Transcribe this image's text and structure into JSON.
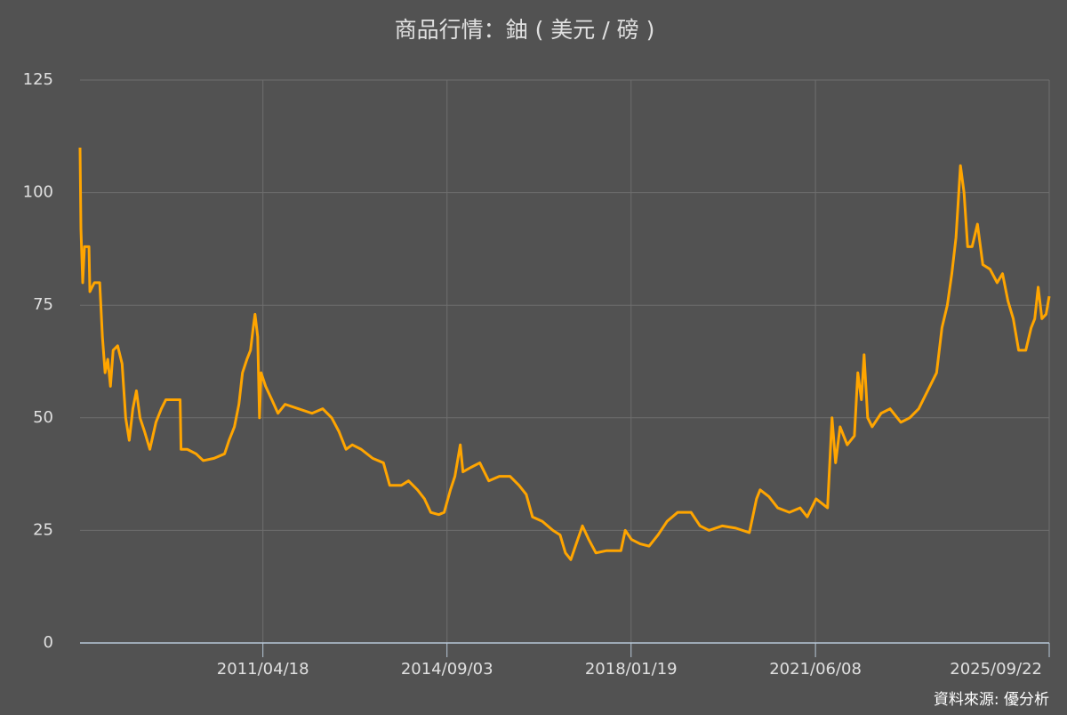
{
  "chart_data": {
    "type": "line",
    "title": "商品行情：鈾 ( 美元 / 磅 )",
    "source": "資料來源: 優分析",
    "x": [
      "2007/12/09",
      "2007/12/15",
      "2007/12/27",
      "2008/01/08",
      "2008/02/07",
      "2008/02/13",
      "2008/03/14",
      "2008/04/19",
      "2008/05/07",
      "2008/05/25",
      "2008/06/12",
      "2008/06/30",
      "2008/07/18",
      "2008/08/17",
      "2008/09/16",
      "2008/10/10",
      "2008/11/03",
      "2008/11/27",
      "2008/12/21",
      "2009/01/14",
      "2009/02/13",
      "2009/03/21",
      "2009/05/01",
      "2009/06/06",
      "2009/07/06",
      "2009/10/10",
      "2009/10/16",
      "2009/11/27",
      "2010/01/25",
      "2010/03/14",
      "2010/05/25",
      "2010/08/04",
      "2010/09/03",
      "2010/10/09",
      "2010/11/08",
      "2010/12/02",
      "2011/01/01",
      "2011/01/25",
      "2011/02/12",
      "2011/02/24",
      "2011/03/14",
      "2011/03/26",
      "2011/04/06",
      "2011/05/06",
      "2011/06/17",
      "2011/07/28",
      "2011/09/14",
      "2011/12/13",
      "2012/03/12",
      "2012/05/23",
      "2012/07/22",
      "2012/09/08",
      "2012/10/26",
      "2012/12/07",
      "2013/02/05",
      "2013/04/23",
      "2013/07/04",
      "2013/08/15",
      "2013/11/01",
      "2013/12/19",
      "2014/02/17",
      "2014/04/05",
      "2014/05/17",
      "2014/07/10",
      "2014/08/15",
      "2014/09/26",
      "2014/10/26",
      "2014/12/01",
      "2014/12/19",
      "2015/02/11",
      "2015/04/11",
      "2015/06/10",
      "2015/08/20",
      "2015/10/31",
      "2015/12/30",
      "2016/02/16",
      "2016/03/29",
      "2016/06/03",
      "2016/08/13",
      "2016/09/30",
      "2016/11/05",
      "2016/12/11",
      "2017/01/16",
      "2017/02/27",
      "2017/04/10",
      "2017/05/28",
      "2017/08/08",
      "2017/11/12",
      "2017/12/11",
      "2018/01/21",
      "2018/03/21",
      "2018/05/20",
      "2018/07/19",
      "2018/09/17",
      "2018/11/27",
      "2019/02/25",
      "2019/04/26",
      "2019/06/25",
      "2019/09/23",
      "2019/12/22",
      "2020/03/22",
      "2020/05/09",
      "2020/06/02",
      "2020/07/31",
      "2020/09/28",
      "2020/12/15",
      "2021/02/25",
      "2021/04/14",
      "2021/06/12",
      "2021/08/28",
      "2021/09/27",
      "2021/10/21",
      "2021/11/20",
      "2022/01/07",
      "2022/02/24",
      "2022/03/19",
      "2022/04/12",
      "2022/04/30",
      "2022/05/24",
      "2022/06/23",
      "2022/08/22",
      "2022/10/21",
      "2023/01/01",
      "2023/03/02",
      "2023/05/01",
      "2023/06/30",
      "2023/08/29",
      "2023/10/04",
      "2023/11/09",
      "2023/12/09",
      "2024/01/06",
      "2024/02/05",
      "2024/02/29",
      "2024/03/24",
      "2024/04/23",
      "2024/05/29",
      "2024/07/04",
      "2024/08/21",
      "2024/10/08",
      "2024/11/13",
      "2024/12/19",
      "2025/01/24",
      "2025/03/01",
      "2025/04/18",
      "2025/05/24",
      "2025/06/17",
      "2025/07/10",
      "2025/08/04",
      "2025/09/01",
      "2025/09/22"
    ],
    "series": [
      {
        "name": "鈾",
        "color": "#ffa500",
        "values": [
          110,
          92,
          80,
          88,
          88,
          78,
          80,
          80,
          68,
          60,
          63,
          57,
          65,
          66,
          62,
          50,
          45,
          52,
          56,
          50,
          47,
          43,
          49,
          52,
          54,
          54,
          43,
          43,
          42,
          40.5,
          41,
          42,
          45,
          48,
          53,
          60,
          63,
          65,
          70,
          73,
          68,
          50,
          60,
          57,
          54,
          51,
          53,
          52,
          51,
          52,
          50,
          47,
          43,
          44,
          43,
          41,
          40,
          35,
          35,
          36,
          34,
          32,
          29,
          28.5,
          29,
          34,
          37,
          44,
          38,
          39,
          40,
          36,
          37,
          37,
          35,
          33,
          28,
          27,
          25,
          24,
          20,
          18.5,
          22,
          26,
          23,
          20,
          20.5,
          20.5,
          25,
          23,
          22,
          21.5,
          24,
          27,
          29,
          29,
          26,
          25,
          26,
          25.5,
          24.5,
          32,
          34,
          32.5,
          30,
          29,
          30,
          28,
          32,
          30,
          50,
          40,
          48,
          44,
          46,
          60,
          54,
          64,
          50,
          48,
          51,
          52,
          49,
          50,
          52,
          56,
          60,
          70,
          75,
          82,
          90,
          106,
          100,
          88,
          88,
          93,
          84,
          83,
          80,
          82,
          76,
          72,
          65,
          65,
          70,
          72,
          79,
          72,
          73,
          77
        ]
      }
    ],
    "xlim": [
      "2007/12/09",
      "2025/09/22"
    ],
    "xticks": [
      "2011/04/18",
      "2014/09/03",
      "2018/01/19",
      "2021/06/08",
      "2025/09/22"
    ],
    "ylim": [
      0,
      125
    ],
    "yticks": [
      0,
      25,
      50,
      75,
      100,
      125
    ],
    "grid": true
  }
}
